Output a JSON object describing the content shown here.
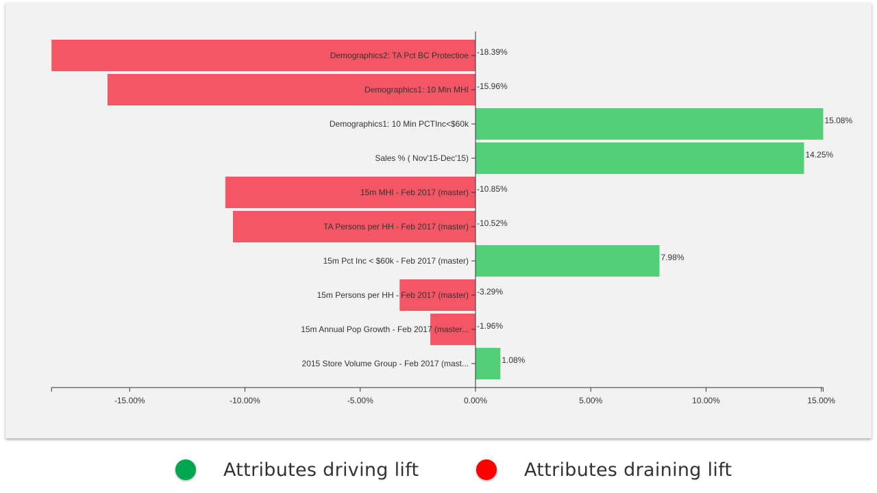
{
  "colors": {
    "positive": "#51cf79",
    "negative": "#f45666",
    "axis": "#333333",
    "panel": "#f2f2f2"
  },
  "legend": {
    "items": [
      {
        "label": "Attributes driving lift",
        "color": "#00a650"
      },
      {
        "label": "Attributes draining lift",
        "color": "#ff0000"
      }
    ]
  },
  "chart_data": {
    "type": "bar",
    "orientation": "horizontal",
    "xlim": [
      -18.39,
      15.08
    ],
    "x_ticks": [
      -15,
      -10,
      -5,
      0,
      5,
      10,
      15
    ],
    "x_tick_labels": [
      "-15.00%",
      "-10.00%",
      "-5.00%",
      "0.00%",
      "5.00%",
      "10.00%",
      "15.00%"
    ],
    "categories": [
      "Demographics2: TA Pct BC Protectioe",
      "Demographics1: 10 Min MHI",
      "Demographics1: 10 Min PCTInc<$60k",
      "Sales % ( Nov'15-Dec'15)",
      "15m MHI - Feb 2017 (master)",
      "TA Persons per HH - Feb 2017 (master)",
      "15m Pct Inc < $60k - Feb 2017 (master)",
      "15m Persons per HH - Feb 2017 (master)",
      "15m Annual Pop Growth - Feb 2017 (master...",
      "2015 Store Volume Group - Feb 2017 (mast..."
    ],
    "values": [
      -18.39,
      -15.96,
      15.08,
      14.25,
      -10.85,
      -10.52,
      7.98,
      -3.29,
      -1.96,
      1.08
    ],
    "value_labels": [
      "-18.39%",
      "-15.96%",
      "15.08%",
      "14.25%",
      "-10.85%",
      "-10.52%",
      "7.98%",
      "-3.29%",
      "-1.96%",
      "1.08%"
    ],
    "grid": false,
    "legend_position": "bottom"
  }
}
